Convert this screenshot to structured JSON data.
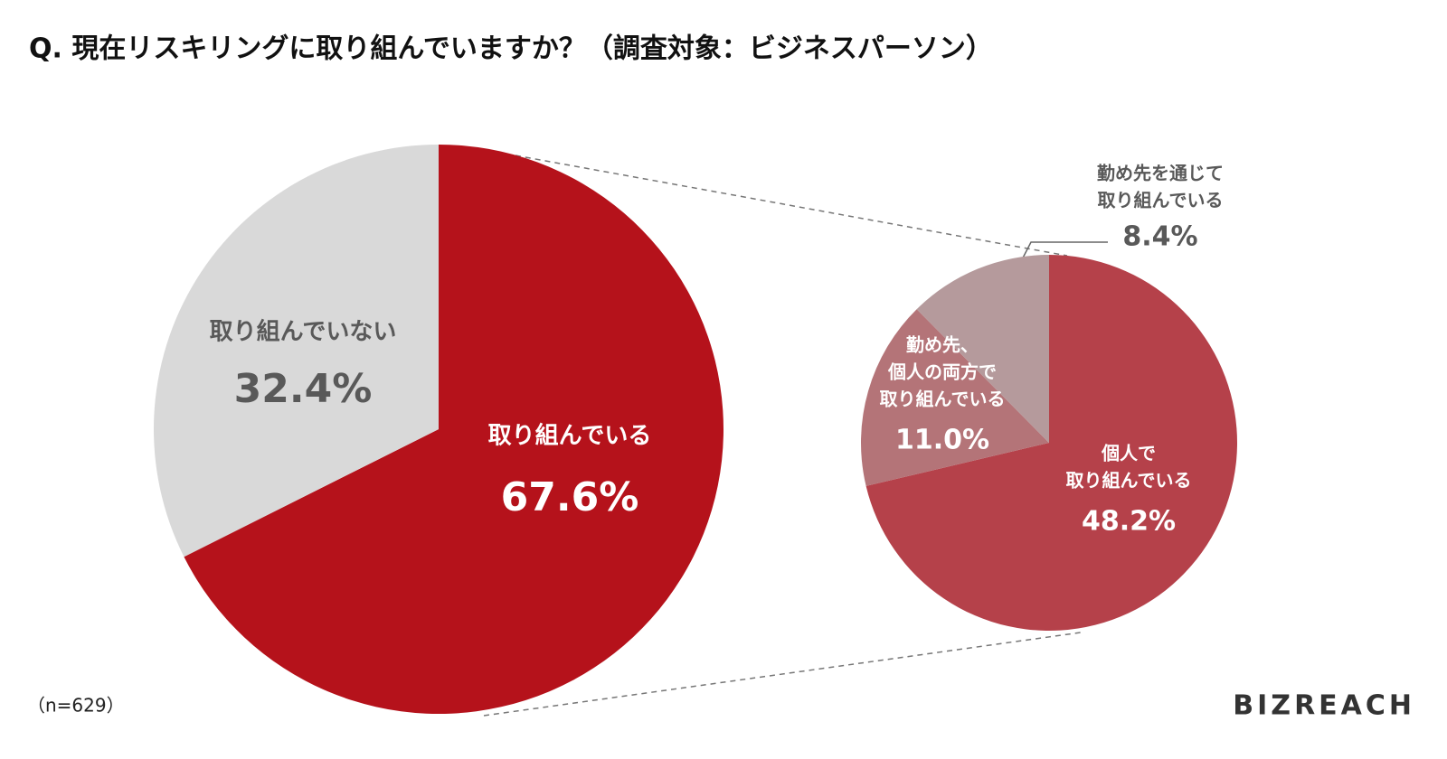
{
  "title": "Q. 現在リスキリングに取り組んでいますか？（調査対象：ビジネスパーソン）",
  "note": "（n=629）",
  "logo": "BIZREACH",
  "chart_data": [
    {
      "type": "pie",
      "categories": [
        [
          "取り組んでいる"
        ],
        [
          "取り組んでいない"
        ]
      ],
      "values": [
        67.6,
        32.4
      ],
      "value_labels": [
        "67.6%",
        "32.4%"
      ],
      "colors": [
        "#b5121b",
        "#d9d9d9"
      ]
    },
    {
      "type": "pie",
      "categories": [
        [
          "個人で",
          "取り組んでいる"
        ],
        [
          "勤め先、",
          "個人の両方で",
          "取り組んでいる"
        ],
        [
          "勤め先を通じて",
          "取り組んでいる"
        ]
      ],
      "values": [
        48.2,
        11.0,
        8.4
      ],
      "value_labels": [
        "48.2%",
        "11.0%",
        "8.4%"
      ],
      "colors": [
        "#b5414a",
        "#b47478",
        "#b59a9c"
      ]
    }
  ]
}
